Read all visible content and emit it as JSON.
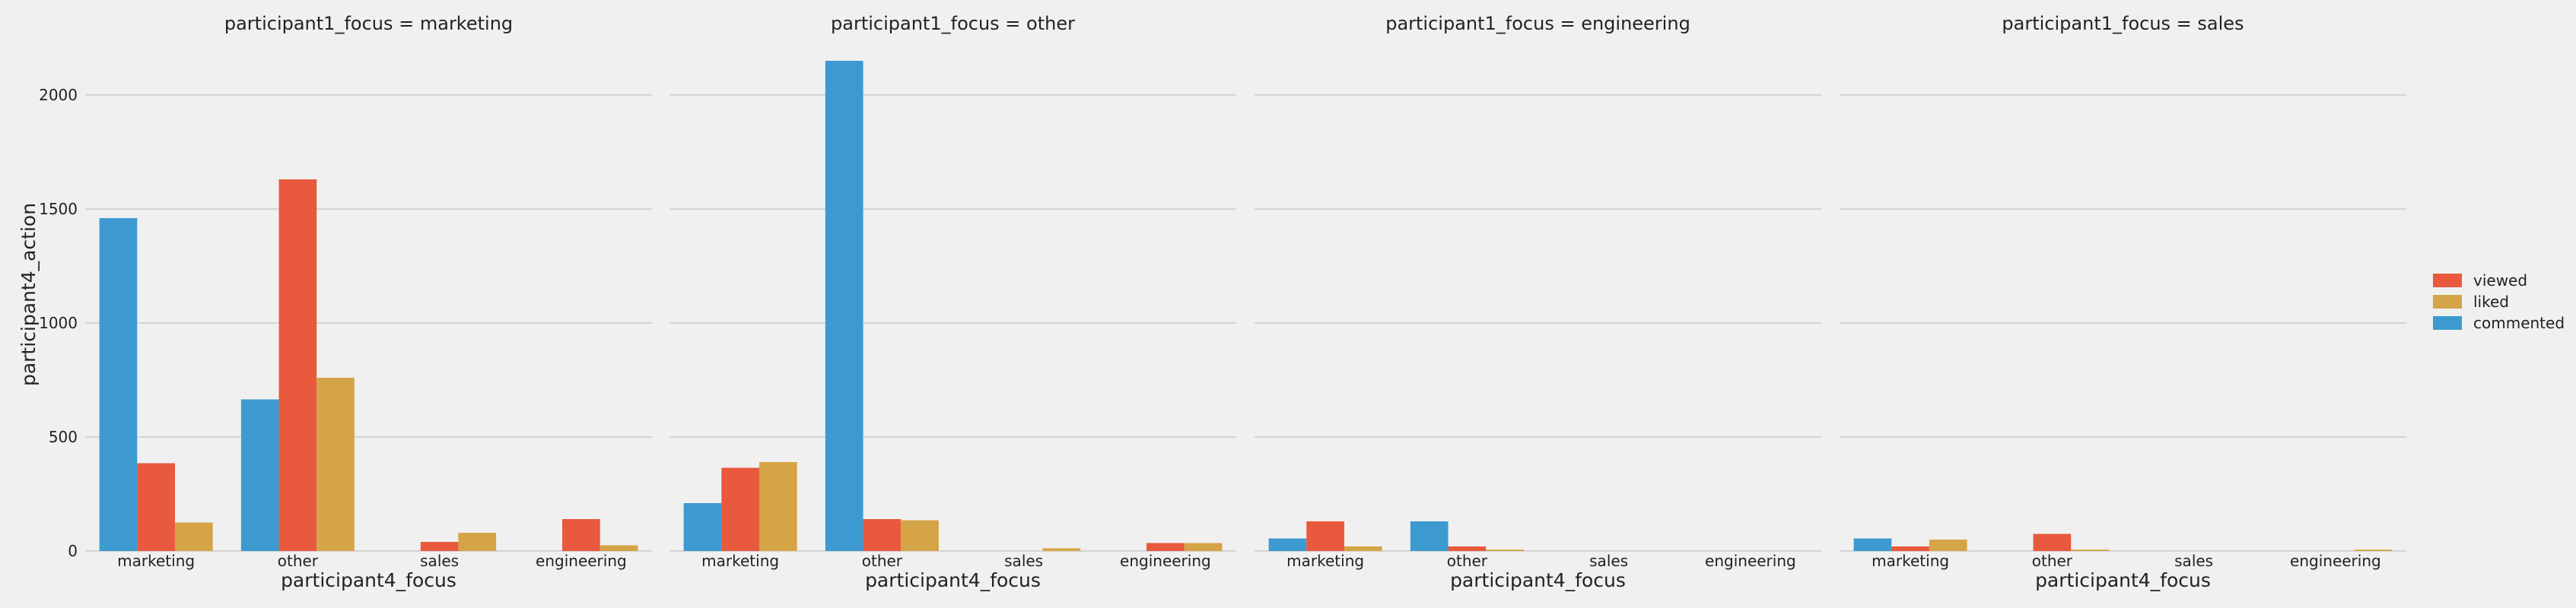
{
  "chart_data": {
    "type": "bar",
    "facet_variable": "participant1_focus",
    "xlabel": "participant4_focus",
    "ylabel": "participant4_action",
    "categories": [
      "marketing",
      "other",
      "sales",
      "engineering"
    ],
    "ylim": [
      0,
      2250
    ],
    "yticks": [
      0,
      500,
      1000,
      1500,
      2000
    ],
    "grid": true,
    "legend_position": "right",
    "legend": [
      "viewed",
      "liked",
      "commented"
    ],
    "hue_order": [
      "commented",
      "viewed",
      "liked"
    ],
    "colors": {
      "commented": "#3d9ad0",
      "viewed": "#e8593d",
      "liked": "#d5a446"
    },
    "facets": [
      {
        "title": "participant1_focus = marketing",
        "series": [
          {
            "name": "commented",
            "values": [
              1460,
              665,
              0,
              0
            ]
          },
          {
            "name": "viewed",
            "values": [
              385,
              1630,
              40,
              140
            ]
          },
          {
            "name": "liked",
            "values": [
              125,
              760,
              80,
              25
            ]
          }
        ]
      },
      {
        "title": "participant1_focus = other",
        "series": [
          {
            "name": "commented",
            "values": [
              210,
              2150,
              0,
              0
            ]
          },
          {
            "name": "viewed",
            "values": [
              365,
              140,
              0,
              35
            ]
          },
          {
            "name": "liked",
            "values": [
              390,
              135,
              12,
              35
            ]
          }
        ]
      },
      {
        "title": "participant1_focus = engineering",
        "series": [
          {
            "name": "commented",
            "values": [
              55,
              130,
              0,
              0
            ]
          },
          {
            "name": "viewed",
            "values": [
              130,
              20,
              0,
              0
            ]
          },
          {
            "name": "liked",
            "values": [
              20,
              6,
              0,
              0
            ]
          }
        ]
      },
      {
        "title": "participant1_focus = sales",
        "series": [
          {
            "name": "commented",
            "values": [
              55,
              0,
              0,
              0
            ]
          },
          {
            "name": "viewed",
            "values": [
              20,
              75,
              0,
              0
            ]
          },
          {
            "name": "liked",
            "values": [
              50,
              6,
              0,
              6
            ]
          }
        ]
      }
    ]
  }
}
